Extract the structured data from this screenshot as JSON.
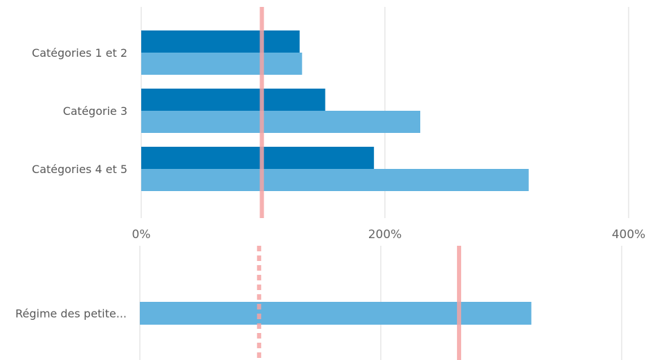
{
  "chart_data": [
    {
      "type": "bar",
      "orientation": "horizontal",
      "categories": [
        "Catégories 1 et 2",
        "Catégorie 3",
        "Catégories 4 et 5"
      ],
      "series": [
        {
          "color": "#0078b8",
          "values": [
            130,
            151,
            191
          ]
        },
        {
          "color": "#63b3df",
          "values": [
            132,
            229,
            318
          ]
        }
      ],
      "xlim": [
        0,
        400
      ],
      "xticks": [
        0,
        200,
        400
      ],
      "tick_format": "percent",
      "reference_lines": [
        {
          "value": 99,
          "style": "solid",
          "color": "#f4a3a3"
        }
      ],
      "grid": true,
      "legend": "none"
    },
    {
      "type": "bar",
      "orientation": "horizontal",
      "categories": [
        "Régime des petite..."
      ],
      "series": [
        {
          "color": "#63b3df",
          "values": [
            325
          ]
        }
      ],
      "xlim": [
        0,
        400
      ],
      "xticks": [
        0,
        200,
        400
      ],
      "tick_labels_shown": false,
      "reference_lines": [
        {
          "value": 99,
          "style": "dashed",
          "color": "#f4a3a3"
        },
        {
          "value": 265,
          "style": "solid",
          "color": "#f4a3a3"
        }
      ],
      "grid": true,
      "legend": "none"
    }
  ]
}
